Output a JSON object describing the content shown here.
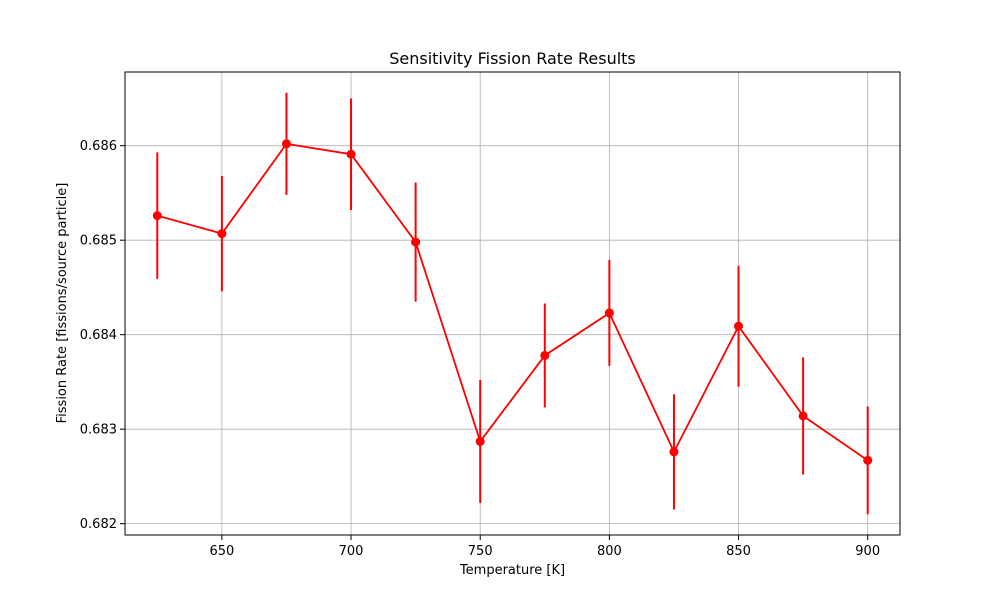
{
  "chart_data": {
    "type": "line",
    "title": "Sensitivity Fission Rate Results",
    "xlabel": "Temperature [K]",
    "ylabel": "Fission Rate [fissions/source particle]",
    "xlim": [
      612.5,
      912.5
    ],
    "ylim": [
      0.68188,
      0.68678
    ],
    "xticks": [
      650,
      700,
      750,
      800,
      850,
      900
    ],
    "xtick_labels": [
      "650",
      "700",
      "750",
      "800",
      "850",
      "900"
    ],
    "yticks": [
      0.682,
      0.683,
      0.684,
      0.685,
      0.686
    ],
    "ytick_labels": [
      "0.682",
      "0.683",
      "0.684",
      "0.685",
      "0.686"
    ],
    "grid": true,
    "color": "#ff0000",
    "series": [
      {
        "x": [
          625,
          650,
          675,
          700,
          725,
          750,
          775,
          800,
          825,
          850,
          875,
          900
        ],
        "y": [
          0.68526,
          0.68507,
          0.68602,
          0.68591,
          0.68498,
          0.68287,
          0.68378,
          0.68423,
          0.68276,
          0.68409,
          0.68314,
          0.68267
        ],
        "yerr": [
          0.00067,
          0.00061,
          0.00054,
          0.00059,
          0.00063,
          0.00065,
          0.00055,
          0.00056,
          0.00061,
          0.00064,
          0.00062,
          0.00057
        ]
      }
    ]
  }
}
